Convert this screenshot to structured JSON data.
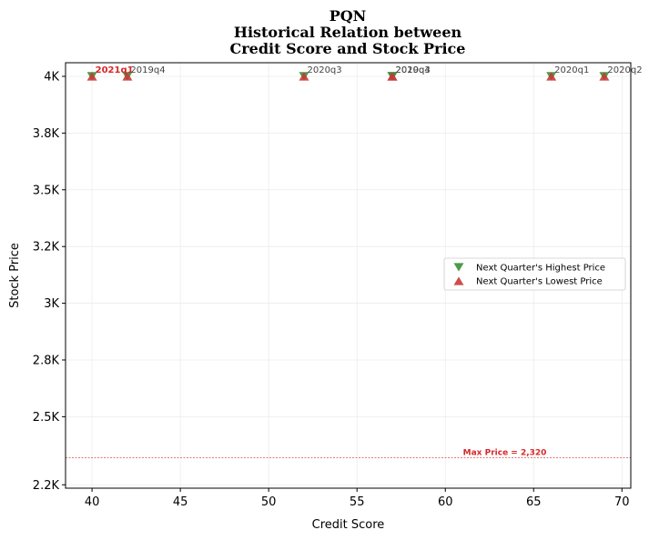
{
  "chart_data": {
    "type": "scatter",
    "title_lines": [
      "PQN",
      "Historical Relation between",
      "Credit Score and Stock Price"
    ],
    "xlabel": "Credit Score",
    "ylabel": "Stock Price",
    "xlim": [
      38.5,
      70.5
    ],
    "ylim": [
      2185,
      4060
    ],
    "x_ticks": [
      40,
      45,
      50,
      55,
      60,
      65,
      70
    ],
    "y_ticks": [
      {
        "value": 2200,
        "label": "2.2K"
      },
      {
        "value": 2500,
        "label": "2.5K"
      },
      {
        "value": 2750,
        "label": "2.8K"
      },
      {
        "value": 3000,
        "label": "3K"
      },
      {
        "value": 3250,
        "label": "3.2K"
      },
      {
        "value": 3500,
        "label": "3.5K"
      },
      {
        "value": 3750,
        "label": "3.8K"
      },
      {
        "value": 4000,
        "label": "4K"
      }
    ],
    "grid": true,
    "legend_position": "center-right",
    "series": [
      {
        "name": "Next Quarter's Highest Price",
        "marker": "triangle-down",
        "color": "#3a8f35",
        "points": [
          {
            "x": 40,
            "y": 4000
          },
          {
            "x": 42,
            "y": 4000
          },
          {
            "x": 52,
            "y": 4000
          },
          {
            "x": 57,
            "y": 4000
          },
          {
            "x": 57,
            "y": 4000
          },
          {
            "x": 66,
            "y": 4000
          },
          {
            "x": 69,
            "y": 4000
          }
        ]
      },
      {
        "name": "Next Quarter's Lowest Price",
        "marker": "triangle-up",
        "color": "#c43c39",
        "points": [
          {
            "x": 40,
            "y": 4000
          },
          {
            "x": 42,
            "y": 4000
          },
          {
            "x": 52,
            "y": 4000
          },
          {
            "x": 57,
            "y": 4000
          },
          {
            "x": 57,
            "y": 4000
          },
          {
            "x": 66,
            "y": 4000
          },
          {
            "x": 69,
            "y": 4000
          }
        ]
      }
    ],
    "point_labels": [
      {
        "x": 40,
        "y": 4000,
        "text": "2021q1",
        "highlight": true
      },
      {
        "x": 42,
        "y": 4000,
        "text": "2019q4",
        "highlight": false
      },
      {
        "x": 52,
        "y": 4000,
        "text": "2020q3",
        "highlight": false
      },
      {
        "x": 57,
        "y": 4000,
        "text": "2019q3",
        "highlight": false
      },
      {
        "x": 57,
        "y": 4000,
        "text": "2020q4",
        "highlight": false
      },
      {
        "x": 66,
        "y": 4000,
        "text": "2020q1",
        "highlight": false
      },
      {
        "x": 69,
        "y": 4000,
        "text": "2020q2",
        "highlight": false
      }
    ],
    "reference_line": {
      "y": 2320,
      "label": "Max Price = 2,320",
      "color": "#d62728",
      "label_x": 61
    }
  }
}
